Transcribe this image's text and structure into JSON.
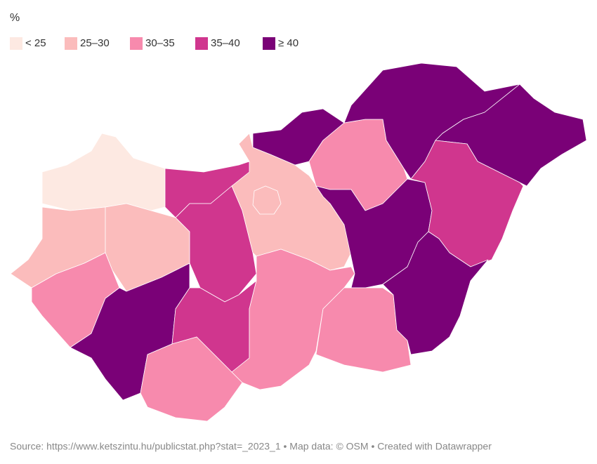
{
  "legend": {
    "title": "%",
    "items": [
      {
        "label": "< 25",
        "color": "#fde9e2"
      },
      {
        "label": "25–30",
        "color": "#fbbcbc"
      },
      {
        "label": "30–35",
        "color": "#f78aad"
      },
      {
        "label": "35–40",
        "color": "#d0368e"
      },
      {
        "label": "≥ 40",
        "color": "#7a0177"
      }
    ]
  },
  "map": {
    "region_classes": [
      0,
      3,
      1,
      1,
      3,
      2,
      4,
      3,
      2,
      1,
      1,
      2,
      4,
      2,
      4,
      4,
      4,
      3,
      2,
      4
    ]
  },
  "footer": {
    "text": "Source: https://www.ketszintu.hu/publicstat.php?stat=_2023_1 • Map data: © OSM  • Created with Datawrapper"
  }
}
